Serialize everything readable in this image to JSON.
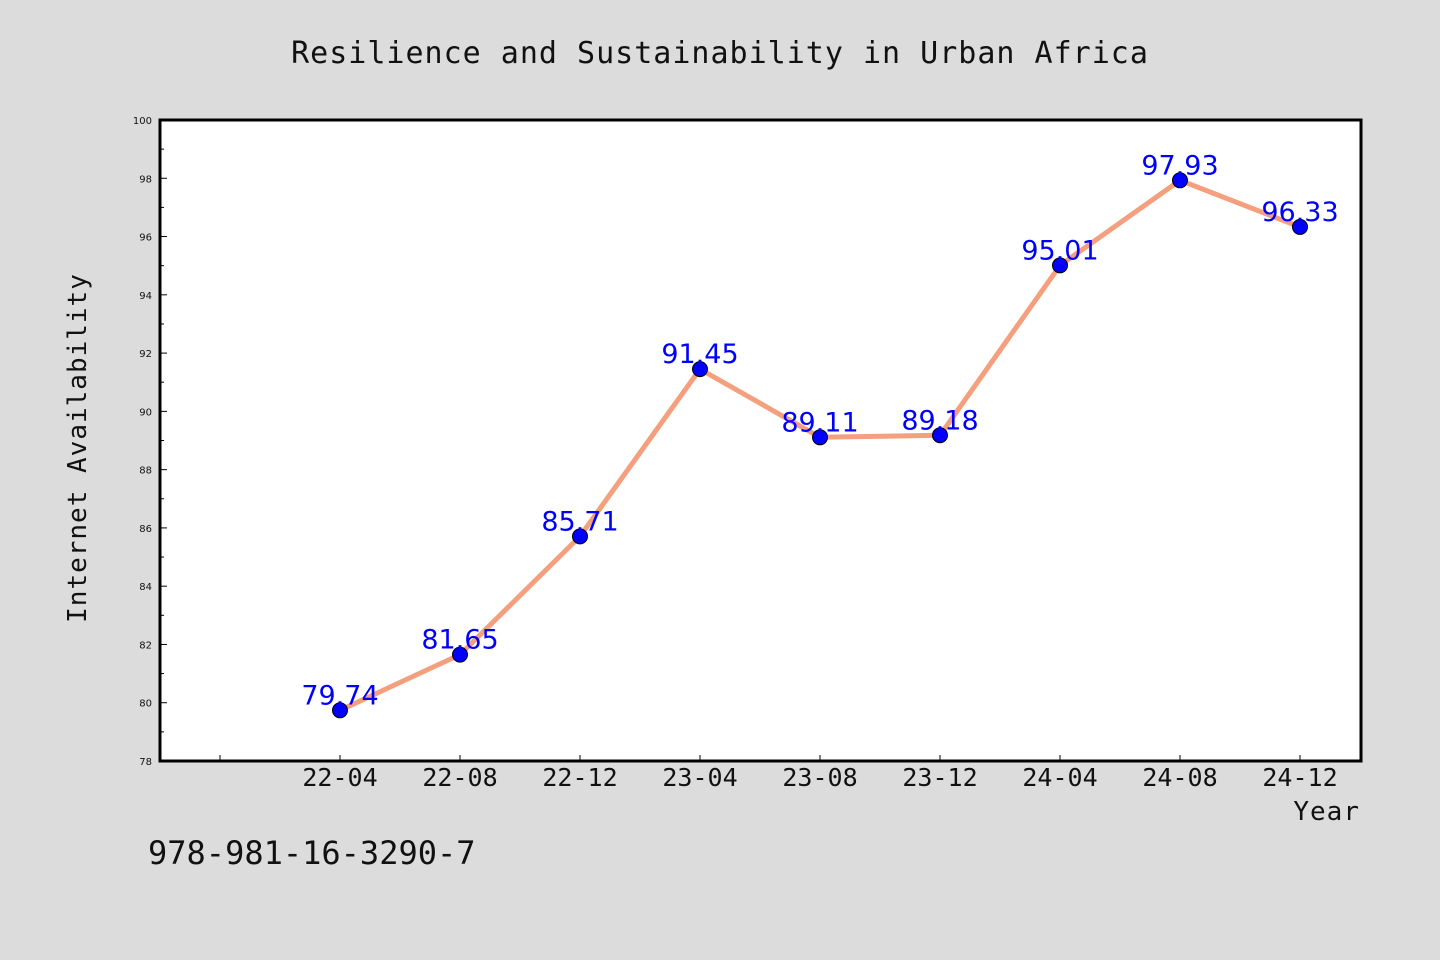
{
  "isbn": "978-981-16-3290-7",
  "colors": {
    "background": "#dcdcdc",
    "plot_area": "#ffffff",
    "line": "#f4a07e",
    "marker": "#0000ff",
    "data_label": "#0000ff"
  },
  "chart_data": {
    "type": "line",
    "title": "Resilience and Sustainability in Urban Africa",
    "xlabel": "Year",
    "ylabel": "Internet Availability",
    "categories": [
      "22-04",
      "22-08",
      "22-12",
      "23-04",
      "23-08",
      "23-12",
      "24-04",
      "24-08",
      "24-12"
    ],
    "values": [
      79.74,
      81.65,
      85.71,
      91.45,
      89.11,
      89.18,
      95.01,
      97.93,
      96.33
    ],
    "data_labels": [
      "79.74",
      "81.65",
      "85.71",
      "91.45",
      "89.11",
      "89.18",
      "95.01",
      "97.93",
      "96.33"
    ],
    "ylim": [
      78,
      100
    ],
    "yticks": [
      "78",
      "80",
      "82",
      "84",
      "86",
      "88",
      "90",
      "92",
      "94",
      "96",
      "98",
      "100"
    ],
    "grid": false,
    "legend": "none"
  }
}
